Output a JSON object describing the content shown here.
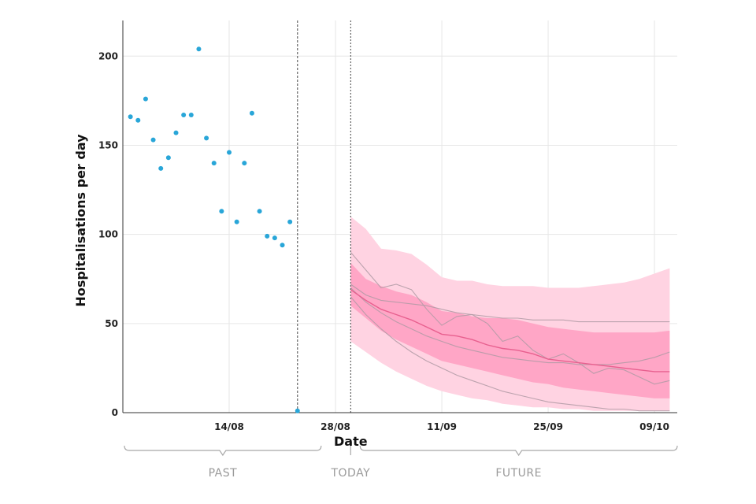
{
  "chart_data": {
    "type": "scatter",
    "xlabel": "Date",
    "ylabel": "Hospitalisations per day",
    "ylim": [
      0,
      220
    ],
    "xlim": [
      "2024-07-31",
      "2024-10-12"
    ],
    "yticks": [
      0,
      50,
      100,
      150,
      200
    ],
    "xticks": [
      {
        "date": "2024-08-14",
        "label": "14/08"
      },
      {
        "date": "2024-08-28",
        "label": "28/08"
      },
      {
        "date": "2024-09-11",
        "label": "11/09"
      },
      {
        "date": "2024-09-25",
        "label": "25/09"
      },
      {
        "date": "2024-10-09",
        "label": "09/10"
      }
    ],
    "grid": true,
    "markers": {
      "last_data_date": "2024-08-23",
      "today_date": "2024-08-30"
    },
    "period_labels": {
      "past": "PAST",
      "today": "TODAY",
      "future": "FUTURE"
    },
    "colors": {
      "observed": "#29a6d8",
      "outer_band": "#ffd3e2",
      "inner_band": "#ffa6c6",
      "median": "#e8608f",
      "trajectory": "#b09aa5"
    },
    "observed": {
      "name": "observed",
      "x": [
        "2024-08-01",
        "2024-08-02",
        "2024-08-03",
        "2024-08-04",
        "2024-08-05",
        "2024-08-06",
        "2024-08-07",
        "2024-08-08",
        "2024-08-09",
        "2024-08-10",
        "2024-08-11",
        "2024-08-12",
        "2024-08-13",
        "2024-08-14",
        "2024-08-15",
        "2024-08-16",
        "2024-08-17",
        "2024-08-18",
        "2024-08-19",
        "2024-08-20",
        "2024-08-21",
        "2024-08-22",
        "2024-08-23"
      ],
      "y": [
        166,
        164,
        176,
        153,
        137,
        143,
        157,
        167,
        167,
        204,
        154,
        140,
        113,
        146,
        107,
        140,
        168,
        113,
        99,
        98,
        94,
        107,
        1
      ]
    },
    "forecast": {
      "x": [
        "2024-08-30",
        "2024-09-01",
        "2024-09-03",
        "2024-09-05",
        "2024-09-07",
        "2024-09-09",
        "2024-09-11",
        "2024-09-13",
        "2024-09-15",
        "2024-09-17",
        "2024-09-19",
        "2024-09-21",
        "2024-09-23",
        "2024-09-25",
        "2024-09-27",
        "2024-09-29",
        "2024-10-01",
        "2024-10-03",
        "2024-10-05",
        "2024-10-07",
        "2024-10-09",
        "2024-10-11"
      ],
      "outer_upper": [
        110,
        103,
        92,
        91,
        89,
        83,
        76,
        74,
        74,
        72,
        71,
        71,
        71,
        70,
        70,
        70,
        71,
        72,
        73,
        75,
        78,
        81
      ],
      "inner_upper": [
        84,
        75,
        71,
        68,
        66,
        62,
        57,
        56,
        54,
        53,
        53,
        52,
        50,
        48,
        47,
        46,
        45,
        45,
        45,
        45,
        45,
        46
      ],
      "median": [
        69,
        63,
        58,
        55,
        52,
        48,
        44,
        43,
        41,
        38,
        36,
        35,
        33,
        30,
        29,
        28,
        27,
        26,
        25,
        24,
        23,
        23
      ],
      "inner_lower": [
        60,
        53,
        46,
        41,
        37,
        33,
        29,
        27,
        25,
        23,
        21,
        19,
        17,
        16,
        14,
        13,
        12,
        11,
        10,
        9,
        8,
        8
      ],
      "outer_lower": [
        40,
        34,
        28,
        23,
        19,
        15,
        12,
        10,
        8,
        7,
        5,
        4,
        3,
        3,
        2,
        2,
        1,
        1,
        1,
        1,
        1,
        1
      ]
    },
    "trajectories": [
      {
        "name": "",
        "y": [
          90,
          80,
          70,
          72,
          69,
          58,
          49,
          54,
          55,
          50,
          40,
          43,
          35,
          30,
          33,
          28,
          22,
          25,
          24,
          20,
          16,
          18
        ]
      },
      {
        "name": "",
        "y": [
          72,
          66,
          63,
          62,
          61,
          60,
          58,
          56,
          55,
          54,
          53,
          53,
          52,
          52,
          52,
          51,
          51,
          51,
          51,
          51,
          51,
          51
        ]
      },
      {
        "name": "",
        "y": [
          70,
          62,
          56,
          51,
          47,
          43,
          40,
          37,
          35,
          33,
          31,
          30,
          29,
          28,
          28,
          27,
          27,
          27,
          28,
          29,
          31,
          34
        ]
      },
      {
        "name": "",
        "y": [
          65,
          55,
          47,
          40,
          34,
          29,
          25,
          21,
          18,
          15,
          12,
          10,
          8,
          6,
          5,
          4,
          3,
          2,
          2,
          1,
          1,
          1
        ]
      }
    ]
  }
}
